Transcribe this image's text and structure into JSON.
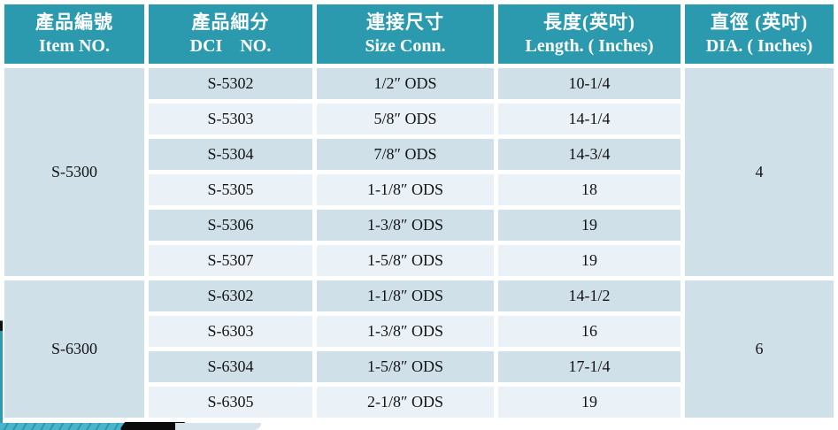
{
  "colors": {
    "header_bg": "#2B9AAE",
    "header_text": "#FFFFFF",
    "row_dark": "#CFE0E9",
    "row_light": "#EAF1F7",
    "body_text": "#141414"
  },
  "table": {
    "headers": [
      {
        "zh": "產品編號",
        "en": "Item NO."
      },
      {
        "zh": "產品細分",
        "en": "DCI    NO."
      },
      {
        "zh": "連接尺寸",
        "en": "Size Conn."
      },
      {
        "zh": "長度(英吋)",
        "en": "Length. ( Inches)"
      },
      {
        "zh": "直徑 (英吋)",
        "en": "DIA. ( Inches)"
      }
    ],
    "groups": [
      {
        "item_no": "S-5300",
        "dia": "4",
        "rows": [
          {
            "dci_no": "S-5302",
            "size_conn": "1/2″ ODS",
            "length": "10-1/4"
          },
          {
            "dci_no": "S-5303",
            "size_conn": "5/8″ ODS",
            "length": "14-1/4"
          },
          {
            "dci_no": "S-5304",
            "size_conn": "7/8″ ODS",
            "length": "14-3/4"
          },
          {
            "dci_no": "S-5305",
            "size_conn": "1-1/8″ ODS",
            "length": "18"
          },
          {
            "dci_no": "S-5306",
            "size_conn": "1-3/8″ ODS",
            "length": "19"
          },
          {
            "dci_no": "S-5307",
            "size_conn": "1-5/8″ ODS",
            "length": "19"
          }
        ]
      },
      {
        "item_no": "S-6300",
        "dia": "6",
        "rows": [
          {
            "dci_no": "S-6302",
            "size_conn": "1-1/8″ ODS",
            "length": "14-1/2"
          },
          {
            "dci_no": "S-6303",
            "size_conn": "1-3/8″ ODS",
            "length": "16"
          },
          {
            "dci_no": "S-6304",
            "size_conn": "1-5/8″ ODS",
            "length": "17-1/4"
          },
          {
            "dci_no": "S-6305",
            "size_conn": "2-1/8″ ODS",
            "length": "19"
          }
        ]
      }
    ]
  }
}
